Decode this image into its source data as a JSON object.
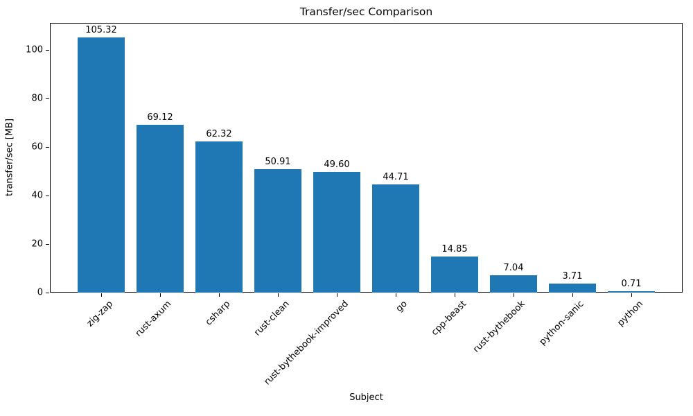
{
  "chart_data": {
    "type": "bar",
    "title": "Transfer/sec Comparison",
    "xlabel": "Subject",
    "ylabel": "transfer/sec [MB]",
    "categories": [
      "zig-zap",
      "rust-axum",
      "csharp",
      "rust-clean",
      "rust-bythebook-improved",
      "go",
      "cpp-beast",
      "rust-bythebook",
      "python-sanic",
      "python"
    ],
    "values": [
      105.32,
      69.12,
      62.32,
      50.91,
      49.6,
      44.71,
      14.85,
      7.04,
      3.71,
      0.71
    ],
    "value_labels": [
      "105.32",
      "69.12",
      "62.32",
      "50.91",
      "49.60",
      "44.71",
      "14.85",
      "7.04",
      "3.71",
      "0.71"
    ],
    "yticks": [
      0,
      20,
      40,
      60,
      80,
      100
    ],
    "ylim": [
      0,
      111.2
    ],
    "x_tick_rotation_deg": 45,
    "grid": false,
    "legend": false,
    "bar_color": "#1f77b4",
    "axis_color": "#000000",
    "background_color": "#ffffff"
  }
}
